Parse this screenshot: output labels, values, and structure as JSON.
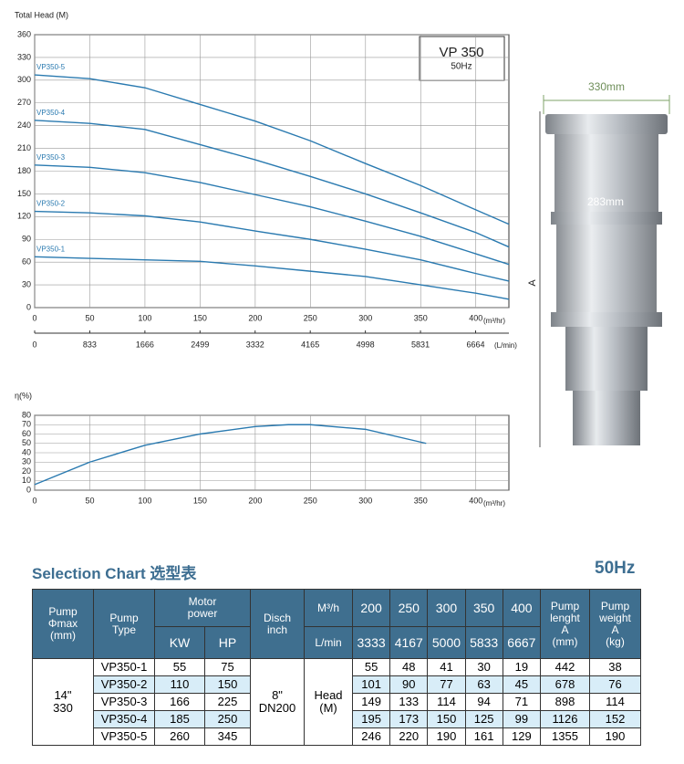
{
  "chart_data": [
    {
      "type": "line",
      "ylabel": "Total Head (M)",
      "xlabel": "(m³/hr)",
      "x2label": "(L/min)",
      "x": [
        0,
        50,
        100,
        150,
        200,
        250,
        300,
        350,
        400,
        430
      ],
      "series": [
        {
          "name": "VP350-5",
          "color": "#2a7ab0",
          "values": [
            307,
            302,
            290,
            268,
            246,
            220,
            190,
            161,
            129,
            110
          ]
        },
        {
          "name": "VP350-4",
          "color": "#2a7ab0",
          "values": [
            247,
            243,
            235,
            215,
            195,
            173,
            150,
            125,
            99,
            80
          ]
        },
        {
          "name": "VP350-3",
          "color": "#2a7ab0",
          "values": [
            188,
            185,
            178,
            165,
            149,
            133,
            114,
            94,
            71,
            57
          ]
        },
        {
          "name": "VP350-2",
          "color": "#2a7ab0",
          "values": [
            127,
            125,
            121,
            113,
            101,
            90,
            77,
            63,
            45,
            35
          ]
        },
        {
          "name": "VP350-1",
          "color": "#2a7ab0",
          "values": [
            67,
            65,
            63,
            61,
            55,
            48,
            41,
            30,
            19,
            11
          ]
        }
      ],
      "xlim": [
        0,
        430
      ],
      "xticks": [
        0,
        50,
        100,
        150,
        200,
        250,
        300,
        350,
        400
      ],
      "ylim": [
        0,
        360
      ],
      "yticks": [
        0,
        30,
        60,
        90,
        120,
        150,
        180,
        210,
        240,
        270,
        300,
        330,
        360
      ],
      "x2lim": [
        0,
        7167
      ],
      "x2ticks": [
        0,
        833,
        1666,
        2499,
        3332,
        4165,
        4998,
        5831,
        6664
      ],
      "grid": true
    },
    {
      "type": "line",
      "ylabel": "η(%)",
      "xlabel": "(m³/hr)",
      "x": [
        0,
        50,
        100,
        150,
        200,
        230,
        250,
        300,
        355
      ],
      "series": [
        {
          "color": "#2a7ab0",
          "values": [
            6,
            30,
            48,
            60,
            68,
            70,
            70,
            65,
            50
          ]
        }
      ],
      "xlim": [
        0,
        430
      ],
      "xticks": [
        0,
        50,
        100,
        150,
        200,
        250,
        300,
        350,
        400
      ],
      "ylim": [
        0,
        80
      ],
      "yticks": [
        0,
        10,
        20,
        30,
        40,
        50,
        60,
        70,
        80
      ],
      "grid": true
    }
  ],
  "badge": {
    "model": "VP 350",
    "freq": "50Hz"
  },
  "dimensions": {
    "width": "330mm",
    "inner": "283mm",
    "length": "A"
  },
  "selection": {
    "title": "Selection Chart 选型表",
    "freq": "50Hz",
    "headers": {
      "dia": "Pump\nΦmax\n(mm)",
      "type": "Pump\nType",
      "motor": "Motor\npower",
      "kw": "KW",
      "hp": "HP",
      "disch": "Disch\ninch",
      "flow_unit": "M³/h",
      "lmin_unit": "L/min",
      "length": "Pump\nlenght\nA\n(mm)",
      "weight": "Pump\nweight\nA\n(kg)",
      "flows": [
        200,
        250,
        300,
        350,
        400
      ],
      "lmin": [
        3333,
        4167,
        5000,
        5833,
        6667
      ]
    },
    "dia": "14\"\n330",
    "disch": "8\"\nDN200",
    "head": "Head\n(M)",
    "rows": [
      [
        "VP350-1",
        55,
        75,
        55,
        48,
        41,
        30,
        19,
        442,
        38
      ],
      [
        "VP350-2",
        110,
        150,
        101,
        90,
        77,
        63,
        45,
        678,
        76
      ],
      [
        "VP350-3",
        166,
        225,
        149,
        133,
        114,
        94,
        71,
        898,
        114
      ],
      [
        "VP350-4",
        185,
        250,
        195,
        173,
        150,
        125,
        99,
        1126,
        152
      ],
      [
        "VP350-5",
        260,
        345,
        246,
        220,
        190,
        161,
        129,
        1355,
        190
      ]
    ]
  }
}
